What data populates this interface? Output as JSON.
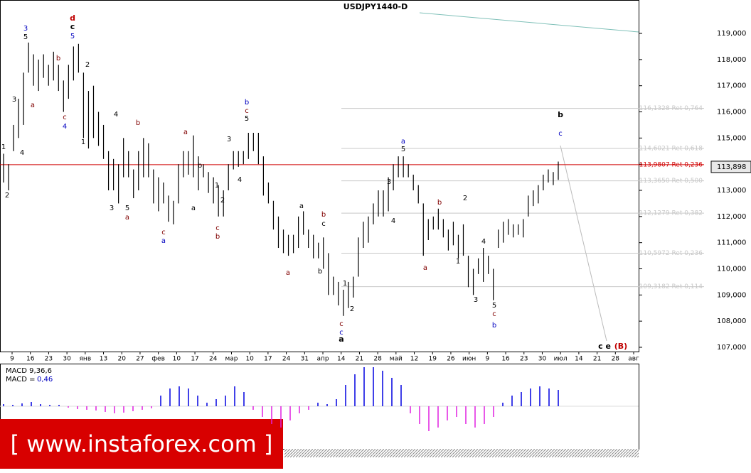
{
  "chart_data": {
    "type": "ohlc",
    "title": "USDJPY1440-D",
    "color": "#000000",
    "high": [
      114.4,
      114.0,
      115.5,
      116.5,
      117.5,
      118.65,
      118.2,
      118,
      118.2,
      117.8,
      118.3,
      117.8,
      117.2,
      117.8,
      118.5,
      118.6,
      117.5,
      116.8,
      117,
      116,
      115.5,
      114.5,
      114.2,
      114,
      115,
      114.5,
      113.8,
      114.5,
      115,
      114.8,
      113.8,
      113.5,
      113.3,
      112.8,
      112.6,
      114,
      114.5,
      114.5,
      115.1,
      114.3,
      114,
      113.7,
      113.5,
      113.2,
      113,
      114,
      114.5,
      114.5,
      114.5,
      115.2,
      115.2,
      115.2,
      114.3,
      113.3,
      112.6,
      112,
      111.5,
      111.3,
      111.3,
      112,
      112.2,
      111.5,
      111.3,
      111,
      111.2,
      110.6,
      109.7,
      109.5,
      109.2,
      109.5,
      109.7,
      111.2,
      111.8,
      112,
      112.5,
      113,
      113,
      113.5,
      114,
      114.3,
      114.3,
      114,
      113.6,
      113.2,
      112.5,
      111.9,
      112,
      112.3,
      111.9,
      111.5,
      111.8,
      111.3,
      111.7,
      110.5,
      110,
      110.4,
      110.8,
      110.5,
      110,
      111.5,
      111.8,
      111.9,
      111.7,
      111.7,
      111.9,
      112.8,
      113,
      113.2,
      113.6,
      113.8,
      113.7,
      114.1
    ],
    "low": [
      113.3,
      113.0,
      114.5,
      115.0,
      115.5,
      117.5,
      117,
      116.8,
      117.3,
      117,
      117.2,
      116.8,
      116,
      116.5,
      117.2,
      117.5,
      115,
      114.6,
      115,
      114.7,
      114.2,
      113,
      113,
      112.5,
      113.5,
      113.5,
      112.7,
      113,
      113.5,
      113.5,
      112.5,
      112.2,
      112.5,
      111.8,
      111.7,
      112.5,
      113.5,
      113.6,
      113.5,
      113,
      113.5,
      112.9,
      112.5,
      112,
      112,
      113,
      113.8,
      113.9,
      114,
      114.2,
      114.5,
      114,
      112.8,
      112.5,
      111.5,
      110.8,
      110.6,
      110.5,
      110.6,
      110.8,
      111.3,
      110.8,
      110.4,
      110.4,
      110,
      109,
      109,
      108.6,
      108.2,
      108.5,
      108.9,
      109.7,
      110.8,
      111,
      111.7,
      112,
      112,
      112.2,
      113,
      113.5,
      113.5,
      113.5,
      113,
      112.5,
      110.5,
      111.1,
      111.5,
      111.5,
      111.2,
      110.7,
      110.9,
      110.4,
      110.5,
      109.3,
      109,
      109.8,
      109.5,
      109.8,
      108.8,
      110.8,
      111,
      111.3,
      111.2,
      111.3,
      111.2,
      112,
      112.4,
      112.5,
      113,
      113.3,
      113.2,
      113.4
    ],
    "ylim": [
      106.837,
      120.277
    ],
    "yticks": [
      {
        "value": 107,
        "label": "107,000"
      },
      {
        "value": 108,
        "label": "108,000"
      },
      {
        "value": 109,
        "label": "109,000"
      },
      {
        "value": 110,
        "label": "110,000"
      },
      {
        "value": 111,
        "label": "111,000"
      },
      {
        "value": 112,
        "label": "112,000"
      },
      {
        "value": 113,
        "label": "113,000"
      },
      {
        "value": 114,
        "label": "114,000"
      },
      {
        "value": 115,
        "label": "115,000"
      },
      {
        "value": 116,
        "label": "116,000"
      },
      {
        "value": 117,
        "label": "117,000"
      },
      {
        "value": 118,
        "label": "118,000"
      },
      {
        "value": 119,
        "label": "119,000"
      }
    ],
    "x_labels": [
      "9",
      "16",
      "23",
      "30",
      "янв",
      "13",
      "20",
      "27",
      "фев",
      "10",
      "17",
      "24",
      "мар",
      "10",
      "17",
      "24",
      "31",
      "апр",
      "14",
      "21",
      "28",
      "май",
      "12",
      "19",
      "26",
      "июн",
      "9",
      "16",
      "23",
      "30",
      "июл",
      "14",
      "21",
      "28",
      "авг"
    ],
    "levels": [
      {
        "value": 116.1328,
        "label": "116,1328 Ret 0,764",
        "color": "#c8c8c8"
      },
      {
        "value": 114.6021,
        "label": "114,6021 Ret 0,618",
        "color": "#c8c8c8"
      },
      {
        "value": 113.9807,
        "label": "113,9807 Ret 0,236",
        "color": "#d00000"
      },
      {
        "value": 113.365,
        "label": "113,3650 Ret 0,500",
        "color": "#c8c8c8"
      },
      {
        "value": 112.1279,
        "label": "112,1279 Ret 0,382",
        "color": "#c8c8c8"
      },
      {
        "value": 110.5972,
        "label": "110,5972 Ret 0,236",
        "color": "#c8c8c8"
      },
      {
        "value": 109.3182,
        "label": "109,3182 Ret 0,114",
        "color": "#c8c8c8"
      }
    ],
    "current_price": {
      "value": 113.898,
      "label": "113,898"
    },
    "annotations": [
      {
        "text": "1",
        "color": "#000000"
      },
      {
        "text": "2",
        "color": "#000000"
      },
      {
        "text": "3",
        "color": "#000000"
      },
      {
        "text": "4",
        "color": "#000000"
      },
      {
        "text": "3",
        "color": "#0000c0"
      },
      {
        "text": "5",
        "color": "#000000"
      },
      {
        "text": "a",
        "color": "#800000"
      },
      {
        "text": "b",
        "color": "#800000"
      },
      {
        "text": "2",
        "color": "#000000"
      },
      {
        "text": "c",
        "color": "#800000"
      },
      {
        "text": "4",
        "color": "#0000c0"
      },
      {
        "text": "1",
        "color": "#000000"
      },
      {
        "text": "d",
        "color": "#c00000"
      },
      {
        "text": "c",
        "color": "#000000"
      },
      {
        "text": "5",
        "color": "#0000c0"
      },
      {
        "text": "3",
        "color": "#000000"
      },
      {
        "text": "4",
        "color": "#000000"
      },
      {
        "text": "5",
        "color": "#000000"
      },
      {
        "text": "a",
        "color": "#800000"
      },
      {
        "text": "b",
        "color": "#800000"
      },
      {
        "text": "a",
        "color": "#800000"
      },
      {
        "text": "b",
        "color": "#000000"
      },
      {
        "text": "c",
        "color": "#800000"
      },
      {
        "text": "a",
        "color": "#0000c0"
      },
      {
        "text": "a",
        "color": "#000000"
      },
      {
        "text": "1",
        "color": "#000000"
      },
      {
        "text": "2",
        "color": "#000000"
      },
      {
        "text": "c",
        "color": "#800000"
      },
      {
        "text": "b",
        "color": "#800000"
      },
      {
        "text": "3",
        "color": "#000000"
      },
      {
        "text": "4",
        "color": "#000000"
      },
      {
        "text": "b",
        "color": "#0000c0"
      },
      {
        "text": "c",
        "color": "#800000"
      },
      {
        "text": "5",
        "color": "#000000"
      },
      {
        "text": "a",
        "color": "#000000"
      },
      {
        "text": "a",
        "color": "#800000"
      },
      {
        "text": "b",
        "color": "#800000"
      },
      {
        "text": "c",
        "color": "#000000"
      },
      {
        "text": "b",
        "color": "#000000"
      },
      {
        "text": "1",
        "color": "#000000"
      },
      {
        "text": "2",
        "color": "#000000"
      },
      {
        "text": "c",
        "color": "#800000"
      },
      {
        "text": "c",
        "color": "#0000c0"
      },
      {
        "text": "a",
        "color": "#000000"
      },
      {
        "text": "3",
        "color": "#000000"
      },
      {
        "text": "4",
        "color": "#000000"
      },
      {
        "text": "a",
        "color": "#0000c0"
      },
      {
        "text": "5",
        "color": "#000000"
      },
      {
        "text": "a",
        "color": "#800000"
      },
      {
        "text": "b",
        "color": "#800000"
      },
      {
        "text": "2",
        "color": "#000000"
      },
      {
        "text": "1",
        "color": "#000000"
      },
      {
        "text": "4",
        "color": "#000000"
      },
      {
        "text": "3",
        "color": "#000000"
      },
      {
        "text": "5",
        "color": "#000000"
      },
      {
        "text": "c",
        "color": "#800000"
      },
      {
        "text": "b",
        "color": "#0000c0"
      },
      {
        "text": "b",
        "color": "#000000"
      },
      {
        "text": "c",
        "color": "#0000c0"
      },
      {
        "text": "c e",
        "color": "#000000"
      },
      {
        "text": "(B)",
        "color": "#c00000"
      }
    ],
    "macd": {
      "name": "MACD 9,36,6",
      "value_caption": "MACD =",
      "value": 0.46,
      "value_label": "0,46",
      "positive_color": "#0000e0",
      "negative_color": "#e020e0",
      "values": [
        0.06,
        0.04,
        0.08,
        0.12,
        0.06,
        0.04,
        0.04,
        -0.04,
        -0.08,
        -0.1,
        -0.12,
        -0.16,
        -0.2,
        -0.18,
        -0.14,
        -0.1,
        -0.06,
        0.3,
        0.5,
        0.56,
        0.5,
        0.3,
        0.1,
        0.2,
        0.3,
        0.56,
        0.4,
        -0.1,
        -0.3,
        -0.5,
        -0.6,
        -0.4,
        -0.2,
        -0.1,
        0.1,
        0.06,
        0.2,
        0.6,
        0.9,
        1.1,
        1.1,
        1.0,
        0.8,
        0.6,
        -0.2,
        -0.5,
        -0.7,
        -0.6,
        -0.4,
        -0.3,
        -0.5,
        -0.6,
        -0.5,
        -0.3,
        0.1,
        0.3,
        0.4,
        0.5,
        0.56,
        0.5,
        0.46
      ]
    },
    "watermark": "[ www.instaforex.com ]"
  }
}
